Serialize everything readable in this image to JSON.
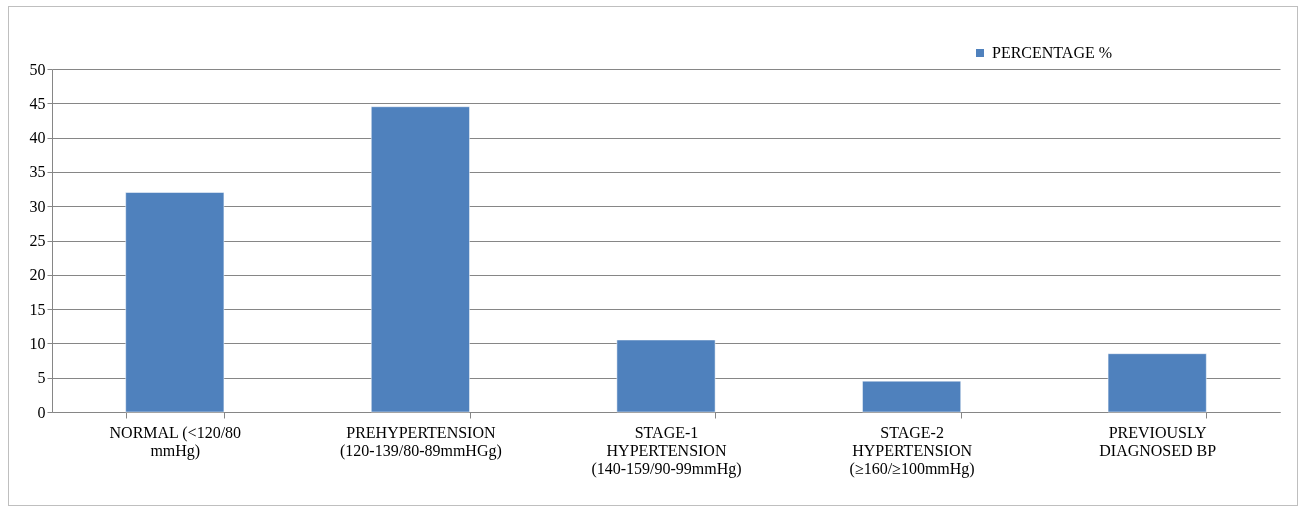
{
  "chart_data": {
    "type": "bar",
    "categories": [
      "NORMAL  (<120/80\nmmHg)",
      "PREHYPERTENSION\n(120-139/80-89mmHGg)",
      "STAGE-1\nHYPERTENSION\n(140-159/90-99mmHg)",
      "STAGE-2\nHYPERTENSION\n(≥160/≥100mmHg)",
      "PREVIOUSLY\nDIAGNOSED BP"
    ],
    "series": [
      {
        "name": "PERCENTAGE %",
        "color": "#4f81bd",
        "values": [
          32,
          44.5,
          10.5,
          4.5,
          8.5
        ]
      }
    ],
    "ylim": [
      0,
      50
    ],
    "yticks": [
      0,
      5,
      10,
      15,
      20,
      25,
      30,
      35,
      40,
      45,
      50
    ],
    "grid": "y",
    "legend": "top right"
  }
}
